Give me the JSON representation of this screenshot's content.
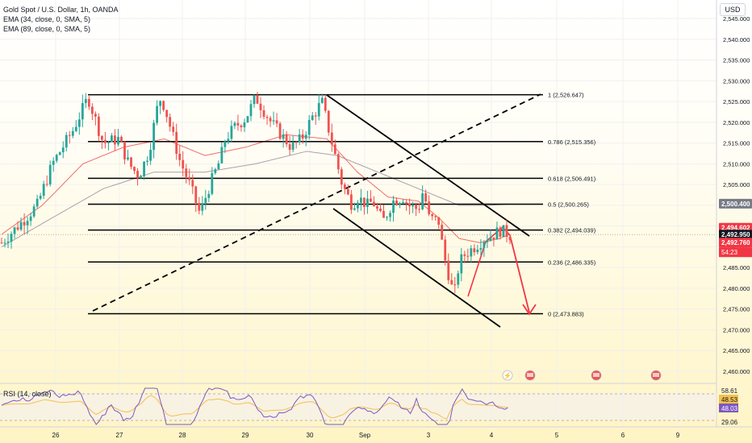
{
  "header": {
    "title": "Gold Spot / U.S. Dollar, 1h, OANDA",
    "ema1": "EMA (34, close, 0, SMA, 5)",
    "ema2": "EMA (89, close, 0, SMA, 5)",
    "currency": "USD",
    "rsi_label": "RSI (14, close)"
  },
  "colors": {
    "up": "#26a69a",
    "down": "#ef5350",
    "ema_fast": "#ef5350",
    "ema_slow": "#9c8fa0",
    "projection": "#f23645"
  },
  "chart_data": {
    "type": "candlestick",
    "symbol": "Gold Spot / U.S. Dollar",
    "interval": "1h",
    "x_ticks": [
      "26",
      "27",
      "28",
      "29",
      "30",
      "Sep",
      "3",
      "4",
      "5",
      "6",
      "9"
    ],
    "ylim": [
      2458.0,
      2545.0
    ],
    "y_ticks": [
      2545.0,
      2540.0,
      2535.0,
      2530.0,
      2525.0,
      2520.0,
      2515.0,
      2510.0,
      2505.0,
      2500.0,
      2495.0,
      2490.0,
      2485.0,
      2480.0,
      2475.0,
      2470.0,
      2465.0,
      2460.0
    ],
    "y_tick_labels": [
      "2,545.000",
      "2,540.000",
      "2,535.000",
      "2,530.000",
      "2,525.000",
      "2,520.000",
      "2,515.000",
      "2,510.000",
      "2,505.000",
      "2,500.000",
      "2,495.000",
      "2,490.000",
      "2,485.000",
      "2,480.000",
      "2,475.000",
      "2,470.000",
      "2,465.000",
      "2,460.000"
    ],
    "price_path": [
      [
        0,
        2491
      ],
      [
        4,
        2496
      ],
      [
        7,
        2500
      ],
      [
        10,
        2510
      ],
      [
        12,
        2514
      ],
      [
        14,
        2518
      ],
      [
        17,
        2526
      ],
      [
        20,
        2515
      ],
      [
        23,
        2516
      ],
      [
        25,
        2510
      ],
      [
        27,
        2507
      ],
      [
        29,
        2513
      ],
      [
        31,
        2526
      ],
      [
        32,
        2524
      ],
      [
        35,
        2511
      ],
      [
        37,
        2505
      ],
      [
        39,
        2498
      ],
      [
        41,
        2505
      ],
      [
        43,
        2511
      ],
      [
        44,
        2516
      ],
      [
        46,
        2519
      ],
      [
        48,
        2521
      ],
      [
        50,
        2526
      ],
      [
        53,
        2520
      ],
      [
        55,
        2517
      ],
      [
        57,
        2514
      ],
      [
        59,
        2516
      ],
      [
        61,
        2521
      ],
      [
        63,
        2525
      ],
      [
        65,
        2515
      ],
      [
        67,
        2505
      ],
      [
        69,
        2500
      ],
      [
        70,
        2502
      ],
      [
        72,
        2500
      ],
      [
        73,
        2501
      ],
      [
        75,
        2496
      ],
      [
        77,
        2501
      ],
      [
        79,
        2502
      ],
      [
        80,
        2500
      ],
      [
        82,
        2499
      ],
      [
        83,
        2504
      ],
      [
        84,
        2497
      ],
      [
        86,
        2496
      ],
      [
        87,
        2488
      ],
      [
        88,
        2483
      ],
      [
        89,
        2478
      ],
      [
        90,
        2486
      ],
      [
        91,
        2488
      ],
      [
        93,
        2490
      ],
      [
        95,
        2492
      ],
      [
        97,
        2493
      ],
      [
        98,
        2494
      ],
      [
        99,
        2493.5
      ],
      [
        100,
        2492.9
      ]
    ],
    "ema_fast_path": [
      [
        0,
        2493
      ],
      [
        8,
        2500
      ],
      [
        16,
        2510
      ],
      [
        24,
        2514
      ],
      [
        32,
        2516
      ],
      [
        40,
        2512
      ],
      [
        48,
        2514
      ],
      [
        56,
        2517
      ],
      [
        64,
        2516
      ],
      [
        70,
        2508
      ],
      [
        76,
        2502
      ],
      [
        82,
        2501
      ],
      [
        86,
        2497
      ],
      [
        90,
        2492
      ],
      [
        94,
        2491
      ],
      [
        98,
        2492
      ],
      [
        100,
        2493
      ]
    ],
    "ema_slow_path": [
      [
        0,
        2490
      ],
      [
        10,
        2497
      ],
      [
        20,
        2504
      ],
      [
        30,
        2508
      ],
      [
        40,
        2508
      ],
      [
        50,
        2510
      ],
      [
        60,
        2513
      ],
      [
        66,
        2512
      ],
      [
        72,
        2509
      ],
      [
        78,
        2506
      ],
      [
        84,
        2503
      ],
      [
        90,
        2500
      ],
      [
        96,
        2500
      ],
      [
        100,
        2500.3
      ]
    ],
    "fibonacci": [
      {
        "level": "1",
        "price": 2526.647,
        "label": "1 (2,526.647)"
      },
      {
        "level": "0.786",
        "price": 2515.356,
        "label": "0.786 (2,515.356)"
      },
      {
        "level": "0.618",
        "price": 2506.491,
        "label": "0.618 (2,506.491)"
      },
      {
        "level": "0.5",
        "price": 2500.265,
        "label": "0.5 (2,500.265)"
      },
      {
        "level": "0.382",
        "price": 2494.039,
        "label": "0.382 (2,494.039)"
      },
      {
        "level": "0.236",
        "price": 2486.335,
        "label": "0.236 (2,486.335)"
      },
      {
        "level": "0",
        "price": 2473.883,
        "label": "0 (2,473.883)"
      }
    ],
    "price_badges": [
      {
        "value": 2500.4,
        "text": "2,500.400",
        "color": "#787b86"
      },
      {
        "value": 2494.602,
        "text": "2,494.602",
        "color": "#f23645"
      },
      {
        "value": 2492.95,
        "text": "2,492.950",
        "color": "#131722"
      },
      {
        "value": 2492.76,
        "text": "2,492.760",
        "color": "#f23645"
      }
    ],
    "countdown": "54:23",
    "rsi": {
      "levels": [
        {
          "value": 58.61,
          "text": "58.61"
        },
        {
          "value": 48.53,
          "text": "48.53"
        },
        {
          "value": 48.03,
          "text": "48.03"
        },
        {
          "value": 29.06,
          "text": "29.06"
        }
      ]
    }
  }
}
